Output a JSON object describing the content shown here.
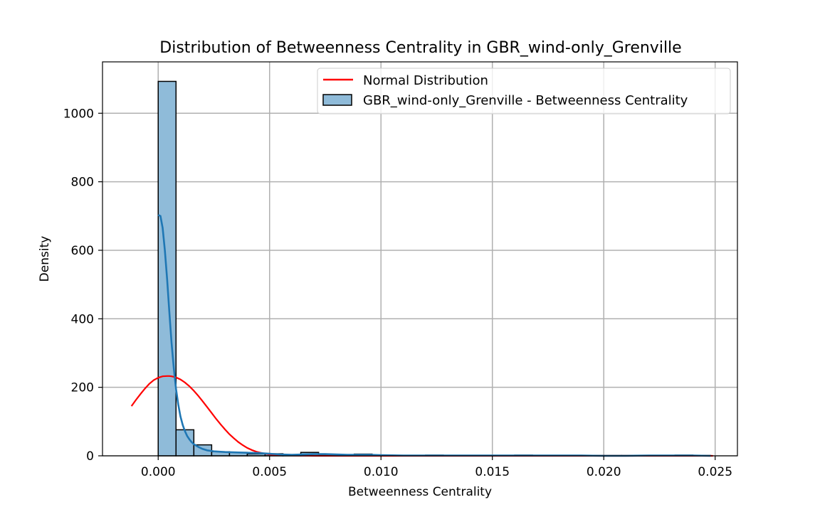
{
  "chart_data": {
    "type": "histogram",
    "title": "Distribution of Betweenness Centrality in GBR_wind-only_Grenville",
    "xlabel": "Betweenness Centrality",
    "ylabel": "Density",
    "xlim": [
      -0.0025,
      0.026
    ],
    "ylim": [
      0,
      1150
    ],
    "grid": true,
    "legend_position": "top-right",
    "x_ticks": [
      "0.000",
      "0.005",
      "0.010",
      "0.015",
      "0.020",
      "0.025"
    ],
    "x_tick_values": [
      0,
      0.005,
      0.01,
      0.015,
      0.02,
      0.025
    ],
    "y_ticks": [
      "0",
      "200",
      "400",
      "600",
      "800",
      "1000"
    ],
    "y_tick_values": [
      0,
      200,
      400,
      600,
      800,
      1000
    ],
    "colors": {
      "bar_fill": "#8fbbd9",
      "bar_edge": "#000000",
      "kde_line": "#1f77b4",
      "normal_line": "#ff0000",
      "grid": "#b0b0b0"
    },
    "histogram": {
      "name": "GBR_wind-only_Grenville - Betweenness Centrality",
      "bins": [
        {
          "x0": 0.0,
          "x1": 0.0008,
          "value": 1093
        },
        {
          "x0": 0.0008,
          "x1": 0.0016,
          "value": 76
        },
        {
          "x0": 0.0016,
          "x1": 0.0024,
          "value": 32
        },
        {
          "x0": 0.0024,
          "x1": 0.0032,
          "value": 12
        },
        {
          "x0": 0.0032,
          "x1": 0.004,
          "value": 10
        },
        {
          "x0": 0.004,
          "x1": 0.0048,
          "value": 6
        },
        {
          "x0": 0.0048,
          "x1": 0.0056,
          "value": 6
        },
        {
          "x0": 0.0056,
          "x1": 0.0064,
          "value": 3
        },
        {
          "x0": 0.0064,
          "x1": 0.0072,
          "value": 10
        },
        {
          "x0": 0.0072,
          "x1": 0.008,
          "value": 2
        },
        {
          "x0": 0.008,
          "x1": 0.0088,
          "value": 2
        },
        {
          "x0": 0.0088,
          "x1": 0.0096,
          "value": 5
        },
        {
          "x0": 0.0096,
          "x1": 0.0104,
          "value": 2
        },
        {
          "x0": 0.0104,
          "x1": 0.0112,
          "value": 1
        },
        {
          "x0": 0.0112,
          "x1": 0.012,
          "value": 1
        },
        {
          "x0": 0.012,
          "x1": 0.0128,
          "value": 2
        },
        {
          "x0": 0.0128,
          "x1": 0.0136,
          "value": 1
        },
        {
          "x0": 0.0136,
          "x1": 0.0144,
          "value": 1
        },
        {
          "x0": 0.0144,
          "x1": 0.0152,
          "value": 1
        },
        {
          "x0": 0.0152,
          "x1": 0.016,
          "value": 1
        },
        {
          "x0": 0.016,
          "x1": 0.0168,
          "value": 2
        },
        {
          "x0": 0.0168,
          "x1": 0.0176,
          "value": 1
        },
        {
          "x0": 0.0176,
          "x1": 0.0184,
          "value": 1
        },
        {
          "x0": 0.0184,
          "x1": 0.0192,
          "value": 1
        },
        {
          "x0": 0.0192,
          "x1": 0.02,
          "value": 1
        },
        {
          "x0": 0.02,
          "x1": 0.0208,
          "value": 1
        },
        {
          "x0": 0.0208,
          "x1": 0.0216,
          "value": 1
        },
        {
          "x0": 0.0216,
          "x1": 0.0224,
          "value": 1
        },
        {
          "x0": 0.0224,
          "x1": 0.0232,
          "value": 1
        },
        {
          "x0": 0.0232,
          "x1": 0.024,
          "value": 2
        },
        {
          "x0": 0.024,
          "x1": 0.0248,
          "value": 1
        }
      ]
    },
    "kde_series": {
      "x": [
        0.0,
        0.0001,
        0.0002,
        0.0003,
        0.0004,
        0.0005,
        0.0006,
        0.0007,
        0.0008,
        0.0009,
        0.001,
        0.0011,
        0.0012,
        0.0013,
        0.0014,
        0.0015,
        0.0016,
        0.0018,
        0.002,
        0.0022,
        0.0025,
        0.003,
        0.0035,
        0.004,
        0.0045,
        0.005,
        0.0055,
        0.006,
        0.0065,
        0.007,
        0.0075,
        0.008,
        0.0085,
        0.009,
        0.0095,
        0.01,
        0.011,
        0.012,
        0.013,
        0.014,
        0.015,
        0.016,
        0.017,
        0.018,
        0.019,
        0.02,
        0.021,
        0.022,
        0.023,
        0.024,
        0.0248
      ],
      "y": [
        703,
        700,
        665,
        600,
        515,
        420,
        330,
        255,
        195,
        150,
        115,
        90,
        72,
        58,
        48,
        40,
        34,
        26,
        20,
        16,
        13,
        11,
        10,
        9,
        8,
        6,
        4,
        3,
        4,
        5,
        5,
        4,
        3,
        3,
        3,
        2,
        1,
        1,
        1,
        1,
        1,
        1,
        1,
        1,
        1,
        0,
        0,
        1,
        1,
        1,
        0
      ]
    },
    "normal_series": {
      "name": "Normal Distribution",
      "x": [
        -0.0012,
        -0.001,
        -0.0008,
        -0.0006,
        -0.0004,
        -0.0002,
        0.0,
        0.0002,
        0.0004,
        0.0005,
        0.0006,
        0.0008,
        0.001,
        0.0012,
        0.0014,
        0.0016,
        0.0018,
        0.002,
        0.0022,
        0.0024,
        0.0026,
        0.0028,
        0.003,
        0.0032,
        0.0034,
        0.0036,
        0.0038,
        0.004,
        0.0042,
        0.0044,
        0.0046,
        0.0048,
        0.005,
        0.0055,
        0.006,
        0.007,
        0.008,
        0.01,
        0.015,
        0.02,
        0.0249
      ],
      "y": [
        145,
        163,
        180,
        196,
        210,
        221,
        228,
        232,
        233,
        233,
        232,
        229,
        223,
        214,
        203,
        190,
        175,
        159,
        142,
        125,
        108,
        92,
        77,
        63,
        51,
        40,
        31,
        23,
        17,
        12,
        9,
        6,
        4,
        2,
        1,
        0,
        0,
        0,
        0,
        0,
        0
      ]
    },
    "legend": {
      "normal_label": "Normal Distribution",
      "hist_label": "GBR_wind-only_Grenville - Betweenness Centrality"
    }
  }
}
